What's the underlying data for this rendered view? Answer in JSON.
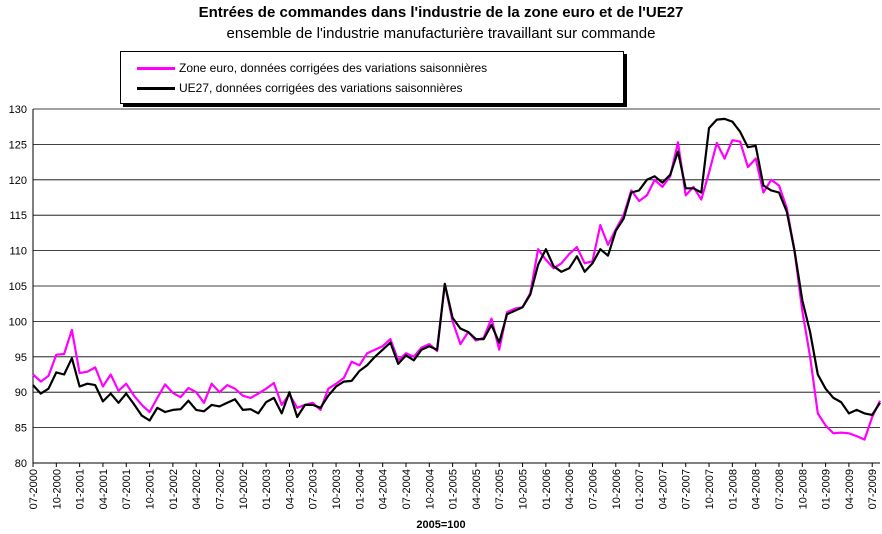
{
  "header": {
    "title": "Entrées de commandes dans l'industrie de la zone euro et de l'UE27",
    "subtitle": "ensemble de l'industrie manufacturière travaillant sur commande"
  },
  "chart_data": {
    "type": "line",
    "title": "Entrées de commandes dans l'industrie de la zone euro et de l'UE27",
    "subtitle": "ensemble de l'industrie manufacturière travaillant sur commande",
    "xlabel": "2005=100",
    "ylabel": "",
    "ylim": [
      80,
      130
    ],
    "yticks": [
      80,
      85,
      90,
      95,
      100,
      105,
      110,
      115,
      120,
      125,
      130
    ],
    "grid": true,
    "legend_position": "top-left",
    "x_tick_labels": [
      "07-2000",
      "10-2000",
      "01-2001",
      "04-2001",
      "07-2001",
      "10-2001",
      "01-2002",
      "04-2002",
      "07-2002",
      "10-2002",
      "01-2003",
      "04-2003",
      "07-2003",
      "10-2003",
      "01-2004",
      "04-2004",
      "07-2004",
      "10-2004",
      "01-2005",
      "04-2005",
      "07-2005",
      "10-2005",
      "01-2006",
      "04-2006",
      "07-2006",
      "10-2006",
      "01-2007",
      "04-2007",
      "07-2007",
      "10-2007",
      "01-2008",
      "04-2008",
      "07-2008",
      "10-2008",
      "01-2009",
      "04-2009",
      "07-2009"
    ],
    "x_start": "2000-07",
    "series": [
      {
        "name": "Zone euro, données corrigées des variations saisonnières",
        "color": "#ff00ff",
        "values": [
          92.5,
          91.5,
          92.3,
          95.3,
          95.4,
          98.8,
          92.7,
          92.9,
          93.5,
          90.8,
          92.5,
          90.2,
          91.2,
          89.5,
          88.2,
          87.2,
          89.2,
          91.1,
          89.9,
          89.3,
          90.6,
          90.0,
          88.5,
          91.2,
          90.0,
          91.0,
          90.5,
          89.5,
          89.2,
          89.8,
          90.5,
          91.3,
          88.2,
          89.7,
          87.8,
          88.2,
          88.5,
          87.5,
          90.5,
          91.2,
          92.0,
          94.3,
          93.8,
          95.5,
          96.0,
          96.5,
          97.5,
          94.5,
          95.5,
          95.0,
          96.3,
          96.8,
          95.8,
          105.3,
          100.0,
          96.8,
          98.5,
          97.3,
          97.7,
          100.4,
          96.0,
          101.3,
          101.8,
          102.0,
          104.0,
          110.2,
          108.7,
          107.5,
          108.2,
          109.5,
          110.5,
          108.2,
          108.5,
          113.6,
          110.8,
          113.0,
          115.0,
          118.5,
          117.0,
          117.8,
          120.0,
          119.0,
          120.5,
          125.3,
          117.8,
          119.0,
          117.2,
          121.0,
          125.2,
          123.0,
          125.6,
          125.4,
          121.8,
          123.0,
          118.2,
          120.0,
          119.2,
          116.0,
          110.0,
          101.5,
          95.0,
          87.0,
          85.3,
          84.2,
          84.3,
          84.2,
          83.8,
          83.3,
          86.5,
          88.8
        ]
      },
      {
        "name": "UE27, données corrigées des variations saisonnières",
        "color": "#000000",
        "values": [
          91.0,
          89.8,
          90.5,
          92.8,
          92.5,
          94.8,
          90.8,
          91.2,
          91.0,
          88.7,
          89.8,
          88.5,
          89.8,
          88.3,
          86.7,
          86.0,
          87.8,
          87.2,
          87.5,
          87.6,
          88.8,
          87.5,
          87.3,
          88.2,
          88.0,
          88.5,
          89.0,
          87.5,
          87.6,
          87.0,
          88.6,
          89.2,
          87.0,
          90.0,
          86.5,
          88.2,
          88.2,
          87.8,
          89.5,
          90.8,
          91.5,
          91.6,
          93.0,
          93.8,
          95.0,
          96.0,
          97.0,
          94.0,
          95.2,
          94.5,
          96.0,
          96.5,
          96.0,
          105.3,
          100.5,
          99.0,
          98.5,
          97.5,
          97.5,
          99.5,
          97.0,
          101.0,
          101.5,
          102.0,
          103.8,
          108.0,
          110.2,
          107.8,
          107.0,
          107.5,
          109.2,
          107.0,
          108.2,
          110.2,
          109.3,
          112.8,
          114.5,
          118.2,
          118.5,
          120.0,
          120.5,
          119.6,
          120.7,
          124.0,
          118.8,
          118.8,
          118.2,
          127.3,
          128.5,
          128.6,
          128.2,
          126.8,
          124.6,
          124.8,
          119.2,
          118.5,
          118.2,
          115.5,
          110.0,
          103.0,
          98.5,
          92.5,
          90.5,
          89.2,
          88.6,
          87.0,
          87.5,
          87.0,
          86.8,
          88.5
        ]
      }
    ]
  }
}
